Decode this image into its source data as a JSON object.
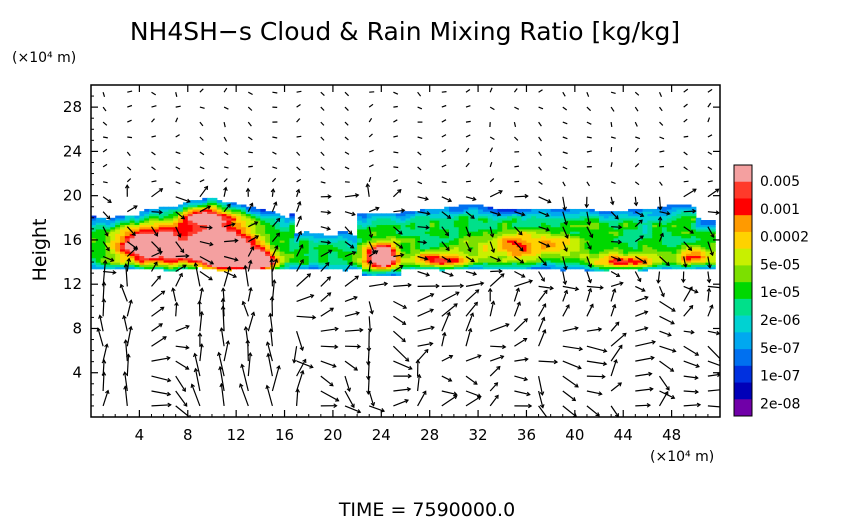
{
  "chart_data": {
    "type": "heatmap",
    "title": "NH4SH−s Cloud & Rain Mixing Ratio [kg/kg]",
    "y_unit": "(×10⁴ m)",
    "x_unit": "(×10⁴ m)",
    "ylabel": "Height",
    "xlabel": "",
    "footer": "TIME = 7590000.0",
    "xlim": [
      0,
      52
    ],
    "ylim": [
      0,
      30
    ],
    "x_ticks": [
      4,
      8,
      12,
      16,
      20,
      24,
      28,
      32,
      36,
      40,
      44,
      48
    ],
    "y_ticks": [
      4,
      8,
      12,
      16,
      20,
      24,
      28
    ],
    "grid": false,
    "colorbar": {
      "placement": "right",
      "labels": [
        "0.005",
        "0.001",
        "0.0002",
        "5e-05",
        "1e-05",
        "2e-06",
        "5e-07",
        "1e-07",
        "2e-08"
      ],
      "colors": [
        "#f4a0a0",
        "#ff3a2a",
        "#ff0000",
        "#ff9a00",
        "#ffd200",
        "#c8f000",
        "#7ce000",
        "#00d800",
        "#00e08a",
        "#00d2d2",
        "#00a8f0",
        "#0070f0",
        "#0030e0",
        "#0000b8",
        "#7000a8"
      ]
    },
    "cloud_layer": {
      "x_range": [
        0,
        51.5
      ],
      "y_range": [
        13.2,
        19.8
      ],
      "core_maxima": [
        {
          "x": 5,
          "y": 15.5,
          "level": "0.001"
        },
        {
          "x": 11,
          "y": 14.5,
          "level": "0.001"
        },
        {
          "x": 24,
          "y": 14.5,
          "level": "0.001"
        }
      ]
    }
  }
}
